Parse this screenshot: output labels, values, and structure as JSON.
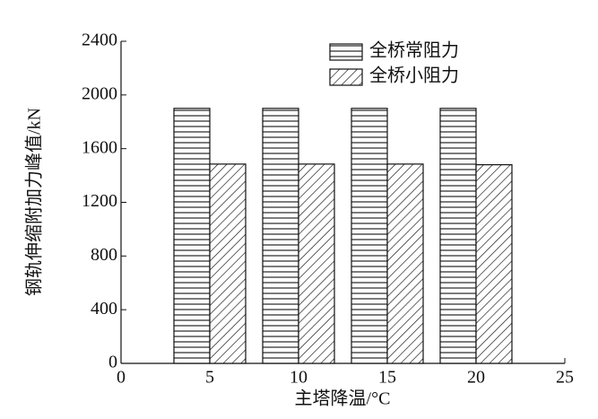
{
  "chart_data": {
    "type": "bar",
    "x_label": "主塔降温/°C",
    "y_label": "钢轨伸缩附加力峰值/kN",
    "x": [
      5,
      10,
      15,
      20
    ],
    "series": [
      {
        "name": "全桥常阻力",
        "pattern": "horizontal",
        "color": "#111111",
        "values": [
          1900,
          1900,
          1900,
          1900
        ]
      },
      {
        "name": "全桥小阻力",
        "pattern": "diagonal",
        "color": "#111111",
        "values": [
          1485,
          1485,
          1485,
          1480
        ]
      }
    ],
    "xlim": [
      0,
      25
    ],
    "xticks": [
      0,
      5,
      10,
      15,
      20,
      25
    ],
    "ylim": [
      0,
      2400
    ],
    "yticks": [
      0,
      400,
      800,
      1200,
      1600,
      2000,
      2400
    ],
    "grid": false,
    "legend": "upper right"
  }
}
